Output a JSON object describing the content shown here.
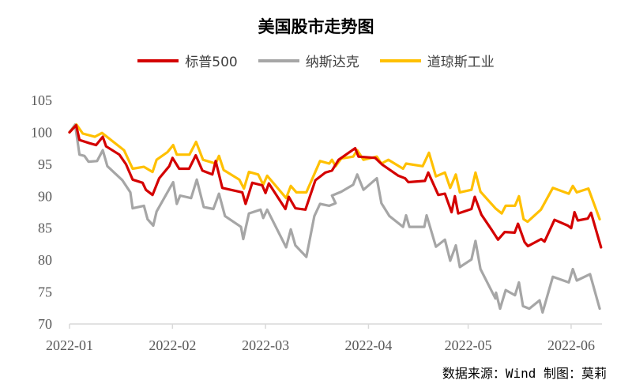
{
  "chart_data": {
    "type": "line",
    "title": "美国股市走势图",
    "source": "数据来源：Wind 制图：莫莉",
    "x_unit": "days since 2022-01-01",
    "xlim": [
      0,
      160
    ],
    "ylim": [
      70,
      105
    ],
    "yticks": [
      70,
      75,
      80,
      85,
      90,
      95,
      100,
      105
    ],
    "xticks": [
      {
        "label": "2022-01",
        "day": 0
      },
      {
        "label": "2022-02",
        "day": 31
      },
      {
        "label": "2022-03",
        "day": 59
      },
      {
        "label": "2022-04",
        "day": 90
      },
      {
        "label": "2022-05",
        "day": 120
      },
      {
        "label": "2022-06",
        "day": 151
      }
    ],
    "legend_position": "top",
    "grid": false,
    "series": [
      {
        "name": "标普500",
        "color": "#d40000",
        "points": [
          [
            0,
            100
          ],
          [
            2,
            101.1
          ],
          [
            3,
            98.8
          ],
          [
            6,
            98.3
          ],
          [
            8,
            98.0
          ],
          [
            10,
            99.3
          ],
          [
            11,
            97.8
          ],
          [
            15,
            96.5
          ],
          [
            17,
            95
          ],
          [
            19,
            92.6
          ],
          [
            22,
            92.1
          ],
          [
            23,
            91.0
          ],
          [
            25,
            90.2
          ],
          [
            27,
            92.8
          ],
          [
            30,
            94.7
          ],
          [
            31,
            96.0
          ],
          [
            33,
            94.3
          ],
          [
            36,
            94.3
          ],
          [
            38,
            96.4
          ],
          [
            40,
            94
          ],
          [
            43,
            93.4
          ],
          [
            44,
            95.5
          ],
          [
            46,
            91.3
          ],
          [
            52,
            90.6
          ],
          [
            53,
            88.8
          ],
          [
            55,
            92.1
          ],
          [
            58,
            91.7
          ],
          [
            59,
            90.5
          ],
          [
            60,
            92
          ],
          [
            65,
            88
          ],
          [
            66,
            89.9
          ],
          [
            68,
            88.1
          ],
          [
            71,
            87.9
          ],
          [
            74,
            92.5
          ],
          [
            77,
            93.7
          ],
          [
            79,
            94
          ],
          [
            81,
            95.7
          ],
          [
            86,
            97.5
          ],
          [
            87,
            96.2
          ],
          [
            92,
            96
          ],
          [
            94,
            95
          ],
          [
            99,
            93.2
          ],
          [
            101,
            92.8
          ],
          [
            102,
            92.2
          ],
          [
            107,
            92.4
          ],
          [
            108,
            93.7
          ],
          [
            111,
            90.2
          ],
          [
            113,
            90.4
          ],
          [
            115,
            87.5
          ],
          [
            116,
            90
          ],
          [
            117,
            87.3
          ],
          [
            121,
            88
          ],
          [
            122,
            89.9
          ],
          [
            124,
            87.1
          ],
          [
            127,
            84.8
          ],
          [
            129,
            83.2
          ],
          [
            131,
            84.4
          ],
          [
            134,
            84.3
          ],
          [
            135,
            85.7
          ],
          [
            137,
            82.8
          ],
          [
            138,
            82.2
          ],
          [
            142,
            83.3
          ],
          [
            143,
            82.9
          ],
          [
            146,
            86.3
          ],
          [
            150,
            85.4
          ],
          [
            151,
            85
          ],
          [
            152,
            87.5
          ],
          [
            153,
            86.2
          ],
          [
            156,
            86.5
          ],
          [
            157,
            87.4
          ],
          [
            160,
            82
          ]
        ]
      },
      {
        "name": "纳斯达克",
        "color": "#a6a6a6",
        "points": [
          [
            0,
            100
          ],
          [
            1.7,
            101.2
          ],
          [
            3,
            96.5
          ],
          [
            4.5,
            96.3
          ],
          [
            5.7,
            95.4
          ],
          [
            8.3,
            95.5
          ],
          [
            10,
            97.2
          ],
          [
            11.4,
            94.7
          ],
          [
            15.9,
            92.5
          ],
          [
            18.3,
            90.6
          ],
          [
            19,
            88.1
          ],
          [
            22.4,
            88.5
          ],
          [
            23.5,
            86.4
          ],
          [
            25.2,
            85.4
          ],
          [
            26.2,
            87.6
          ],
          [
            31.2,
            92.2
          ],
          [
            32.3,
            88.8
          ],
          [
            33.3,
            90.1
          ],
          [
            36.6,
            89.7
          ],
          [
            38.3,
            92.6
          ],
          [
            40.4,
            88.3
          ],
          [
            43.3,
            88
          ],
          [
            45,
            90.4
          ],
          [
            46.8,
            86.9
          ],
          [
            51.6,
            85.2
          ],
          [
            52.3,
            83.3
          ],
          [
            54,
            87.3
          ],
          [
            57.5,
            87.9
          ],
          [
            58.3,
            86.6
          ],
          [
            59.5,
            87.9
          ],
          [
            65.2,
            82
          ],
          [
            66.6,
            84.8
          ],
          [
            68,
            82.3
          ],
          [
            71.3,
            80.5
          ],
          [
            73.7,
            86.9
          ],
          [
            75.4,
            88.8
          ],
          [
            78.2,
            88.5
          ],
          [
            80.1,
            88.9
          ],
          [
            79,
            90.1
          ],
          [
            81.8,
            90.7
          ],
          [
            85.4,
            91.8
          ],
          [
            86.6,
            93.4
          ],
          [
            88.5,
            91
          ],
          [
            92.5,
            92.8
          ],
          [
            93.9,
            88.9
          ],
          [
            96.3,
            86.9
          ],
          [
            100.4,
            85.2
          ],
          [
            101.3,
            87
          ],
          [
            102.3,
            85.2
          ],
          [
            106.8,
            85.2
          ],
          [
            107.5,
            87
          ],
          [
            110.3,
            82.1
          ],
          [
            113,
            83.2
          ],
          [
            114.6,
            79.9
          ],
          [
            116.3,
            82.3
          ],
          [
            117.5,
            78.9
          ],
          [
            121,
            80.1
          ],
          [
            122.2,
            83
          ],
          [
            123.7,
            78.6
          ],
          [
            128.2,
            74
          ],
          [
            128.4,
            74.9
          ],
          [
            129.6,
            72.4
          ],
          [
            131.3,
            75.3
          ],
          [
            134.1,
            74.5
          ],
          [
            135.3,
            76.5
          ],
          [
            136.5,
            72.8
          ],
          [
            138.4,
            72.4
          ],
          [
            141.5,
            73.7
          ],
          [
            142.4,
            71.8
          ],
          [
            145.5,
            77.4
          ],
          [
            150.3,
            76.5
          ],
          [
            151.5,
            78.6
          ],
          [
            152.7,
            76.8
          ],
          [
            156.7,
            77.8
          ],
          [
            159.6,
            72.4
          ]
        ]
      },
      {
        "name": "道琼斯工业",
        "color": "#ffc000",
        "points": [
          [
            0,
            100
          ],
          [
            2.1,
            101.2
          ],
          [
            4,
            99.8
          ],
          [
            7.6,
            99.3
          ],
          [
            9.8,
            99.9
          ],
          [
            16.4,
            97.2
          ],
          [
            19,
            94.3
          ],
          [
            22.4,
            94.6
          ],
          [
            25,
            93.8
          ],
          [
            26.2,
            95.7
          ],
          [
            29.5,
            96.9
          ],
          [
            31.2,
            98
          ],
          [
            32.3,
            96.5
          ],
          [
            36.1,
            96.5
          ],
          [
            38.1,
            98.5
          ],
          [
            40.2,
            95.7
          ],
          [
            44,
            95.1
          ],
          [
            45,
            96.3
          ],
          [
            46.4,
            94.1
          ],
          [
            51.1,
            92.6
          ],
          [
            52.5,
            91.2
          ],
          [
            54,
            93.8
          ],
          [
            56.8,
            93.4
          ],
          [
            58.3,
            91.8
          ],
          [
            59.5,
            93.2
          ],
          [
            65.2,
            89.7
          ],
          [
            66.6,
            91.6
          ],
          [
            68.3,
            90.6
          ],
          [
            71.3,
            90.6
          ],
          [
            75.4,
            95.5
          ],
          [
            78.2,
            95.1
          ],
          [
            79,
            95.7
          ],
          [
            80.1,
            94.7
          ],
          [
            81.8,
            95.9
          ],
          [
            85.4,
            96.2
          ],
          [
            86.6,
            97.2
          ],
          [
            88.5,
            95.7
          ],
          [
            92.5,
            96.2
          ],
          [
            93.9,
            95.1
          ],
          [
            96,
            95.7
          ],
          [
            100.4,
            94.3
          ],
          [
            101.3,
            95.1
          ],
          [
            106.3,
            94.7
          ],
          [
            108.2,
            96.8
          ],
          [
            110.3,
            93.1
          ],
          [
            113,
            93.7
          ],
          [
            114.6,
            91.3
          ],
          [
            116.3,
            93.4
          ],
          [
            117.5,
            90.6
          ],
          [
            121,
            91
          ],
          [
            122.2,
            93.7
          ],
          [
            123.7,
            90.7
          ],
          [
            128.2,
            88.1
          ],
          [
            130.1,
            87.3
          ],
          [
            131.3,
            88.5
          ],
          [
            134.1,
            88.5
          ],
          [
            135.3,
            90
          ],
          [
            136.7,
            86.4
          ],
          [
            137.9,
            86
          ],
          [
            141.9,
            87.9
          ],
          [
            145.5,
            91.3
          ],
          [
            150.3,
            90.4
          ],
          [
            151.5,
            91.6
          ],
          [
            152.7,
            90.6
          ],
          [
            156.2,
            91.2
          ],
          [
            159.6,
            86.4
          ]
        ]
      }
    ]
  }
}
